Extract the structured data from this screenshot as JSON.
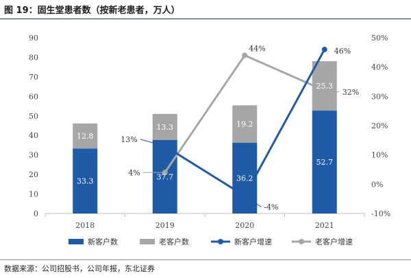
{
  "figure": {
    "title": "图 19：固生堂患者数（按新老患者，万人）",
    "source": "数据来源：公司招股书，公司年报，东北证券"
  },
  "colors": {
    "new": "#1f5aa6",
    "old": "#a6a6a6",
    "axis": "#bfbfbf"
  },
  "chart_data": {
    "type": "bar",
    "stacked": true,
    "categories": [
      "2018",
      "2019",
      "2020",
      "2021"
    ],
    "series": [
      {
        "name": "新客户数",
        "type": "bar",
        "axis": "left",
        "values": [
          33.3,
          37.7,
          36.2,
          52.7
        ]
      },
      {
        "name": "老客户数",
        "type": "bar",
        "axis": "left",
        "values": [
          12.8,
          13.3,
          19.2,
          25.3
        ]
      },
      {
        "name": "新客户增速",
        "type": "line",
        "axis": "right",
        "values": [
          null,
          13,
          -4,
          46
        ],
        "labels": [
          "",
          "13%",
          "-4%",
          "46%"
        ]
      },
      {
        "name": "老客户增速",
        "type": "line",
        "axis": "right",
        "values": [
          null,
          4,
          44,
          32
        ],
        "labels": [
          "",
          "4%",
          "44%",
          "32%"
        ]
      }
    ],
    "left_axis": {
      "min": 0,
      "max": 90,
      "ticks": [
        "0",
        "10",
        "20",
        "30",
        "40",
        "50",
        "60",
        "70",
        "80",
        "90"
      ]
    },
    "right_axis": {
      "min": -10,
      "max": 50,
      "ticks": [
        "-10%",
        "0%",
        "10%",
        "20%",
        "30%",
        "40%",
        "50%"
      ]
    },
    "legend_position": "bottom"
  }
}
